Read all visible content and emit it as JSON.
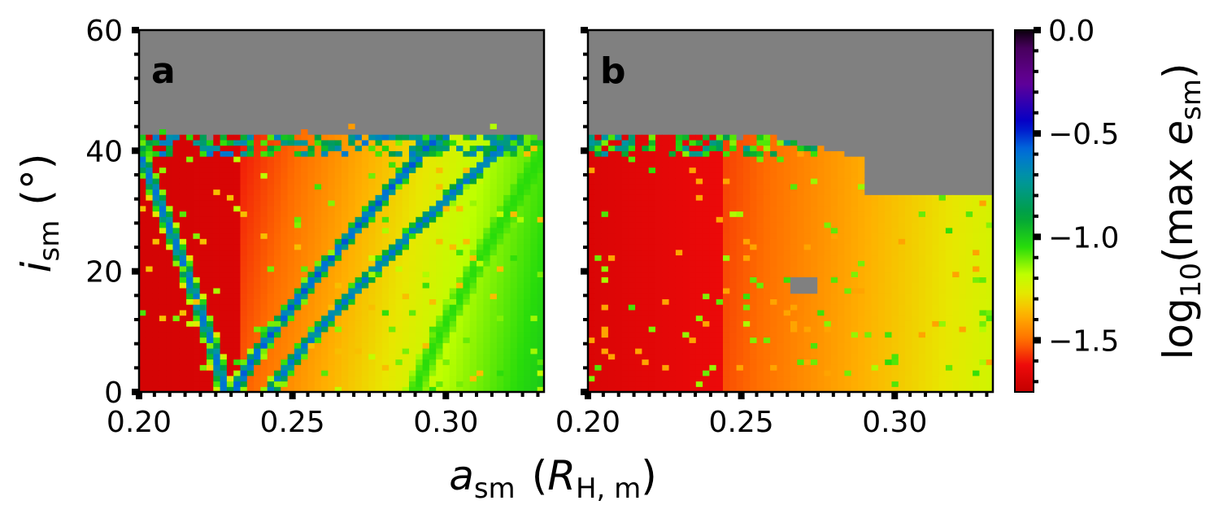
{
  "chart_data": [
    {
      "type": "heatmap",
      "panel_label": "a",
      "x": {
        "range": [
          0.2,
          0.332
        ],
        "ticks": [
          0.2,
          0.25,
          0.3
        ],
        "tick_labels": [
          "0.20",
          "0.25",
          "0.30"
        ]
      },
      "y": {
        "range": [
          0,
          60
        ],
        "ticks": [
          0,
          20,
          40,
          60
        ],
        "tick_labels": [
          "0",
          "20",
          "40",
          "60"
        ]
      },
      "unstable_color": "#808080",
      "stability_boundary_inclination_deg": 43,
      "value_description": "log10 of maximum satellite eccentricity",
      "resonance_bands": [
        {
          "shape": "curve",
          "a_at_0deg": 0.228,
          "a_at_40deg": 0.2,
          "peak_log_e": -0.6
        },
        {
          "shape": "curve",
          "a_at_0deg": 0.231,
          "a_at_40deg": 0.293,
          "peak_log_e": -0.55
        },
        {
          "shape": "curve",
          "a_at_0deg": 0.243,
          "a_at_40deg": 0.317,
          "peak_log_e": -0.6
        },
        {
          "shape": "curve",
          "a_at_0deg": 0.29,
          "a_at_40deg": 0.332,
          "peak_log_e": -1.05
        }
      ]
    },
    {
      "type": "heatmap",
      "panel_label": "b",
      "x": {
        "range": [
          0.2,
          0.332
        ],
        "ticks": [
          0.2,
          0.25,
          0.3
        ],
        "tick_labels": [
          "0.20",
          "0.25",
          "0.30"
        ]
      },
      "y": {
        "range": [
          0,
          60
        ],
        "ticks": [
          0,
          20,
          40,
          60
        ],
        "tick_labels": [
          "0",
          "20",
          "40",
          "60"
        ]
      },
      "unstable_color": "#808080",
      "stability_boundary_inclination_deg": 43,
      "value_description": "log10 of maximum satellite eccentricity",
      "unstable_regions": [
        {
          "a_range": [
            0.29,
            0.332
          ],
          "i_range": [
            33,
            60
          ]
        },
        {
          "a_range": [
            0.267,
            0.275
          ],
          "i_range": [
            16,
            19
          ]
        }
      ]
    }
  ],
  "axes": {
    "y_label_main": "i",
    "y_label_sub": "sm",
    "y_label_unit": "(°)",
    "x_label_main": "a",
    "x_label_sub": "sm",
    "x_label_unit_main": "R",
    "x_label_unit_sub": "H, m"
  },
  "colorbar": {
    "colormap": "nipy_spectral",
    "range": [
      -1.75,
      0.0
    ],
    "ticks": [
      0.0,
      -0.5,
      -1.0,
      -1.5
    ],
    "tick_labels": [
      "0.0",
      "−0.5",
      "−1.0",
      "−1.5"
    ],
    "label_prefix": "log",
    "label_sub": "10",
    "label_open": "(max ",
    "label_var": "e",
    "label_var_sub": "sm",
    "label_close": ")"
  }
}
